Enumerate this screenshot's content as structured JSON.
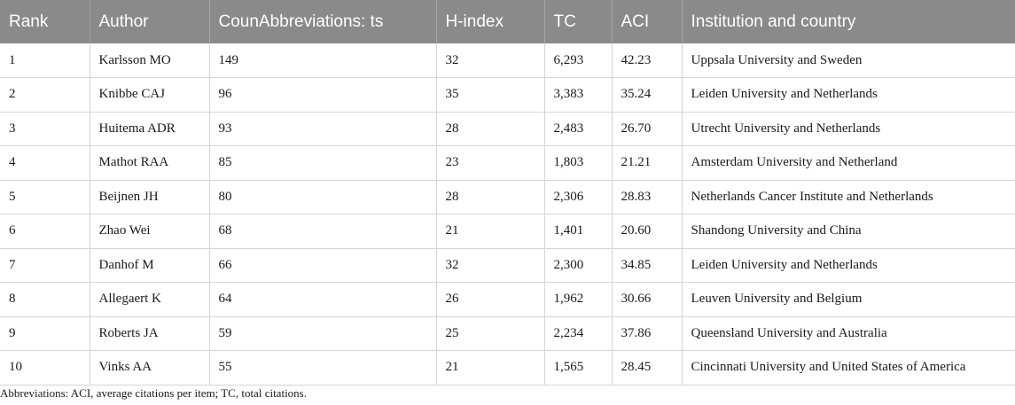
{
  "table": {
    "headers": [
      "Rank",
      "Author",
      "CounAbbreviations: ts",
      "H-index",
      "TC",
      "ACI",
      "Institution and country"
    ],
    "rows": [
      {
        "rank": "1",
        "author": "Karlsson MO",
        "counts": "149",
        "hindex": "32",
        "tc": "6,293",
        "aci": "42.23",
        "institution": "Uppsala University and Sweden"
      },
      {
        "rank": "2",
        "author": "Knibbe CAJ",
        "counts": "96",
        "hindex": "35",
        "tc": "3,383",
        "aci": "35.24",
        "institution": "Leiden University and Netherlands"
      },
      {
        "rank": "3",
        "author": "Huitema ADR",
        "counts": "93",
        "hindex": "28",
        "tc": "2,483",
        "aci": "26.70",
        "institution": "Utrecht University and Netherlands"
      },
      {
        "rank": "4",
        "author": "Mathot RAA",
        "counts": "85",
        "hindex": "23",
        "tc": "1,803",
        "aci": "21.21",
        "institution": "Amsterdam University and Netherland"
      },
      {
        "rank": "5",
        "author": "Beijnen JH",
        "counts": "80",
        "hindex": "28",
        "tc": "2,306",
        "aci": "28.83",
        "institution": "Netherlands Cancer Institute and Netherlands"
      },
      {
        "rank": "6",
        "author": "Zhao Wei",
        "counts": "68",
        "hindex": "21",
        "tc": "1,401",
        "aci": "20.60",
        "institution": "Shandong University and China"
      },
      {
        "rank": "7",
        "author": "Danhof M",
        "counts": "66",
        "hindex": "32",
        "tc": "2,300",
        "aci": "34.85",
        "institution": "Leiden University and Netherlands"
      },
      {
        "rank": "8",
        "author": "Allegaert K",
        "counts": "64",
        "hindex": "26",
        "tc": "1,962",
        "aci": "30.66",
        "institution": "Leuven University and Belgium"
      },
      {
        "rank": "9",
        "author": "Roberts JA",
        "counts": "59",
        "hindex": "25",
        "tc": "2,234",
        "aci": "37.86",
        "institution": "Queensland University and Australia"
      },
      {
        "rank": "10",
        "author": "Vinks AA",
        "counts": "55",
        "hindex": "21",
        "tc": "1,565",
        "aci": "28.45",
        "institution": "Cincinnati University and United States of America"
      }
    ]
  },
  "footnote": "Abbreviations: ACI, average citations per item; TC, total citations.",
  "colors": {
    "header_background": "#8a8a8a",
    "header_text": "#ffffff",
    "grid_line": "#d4d4d4"
  }
}
